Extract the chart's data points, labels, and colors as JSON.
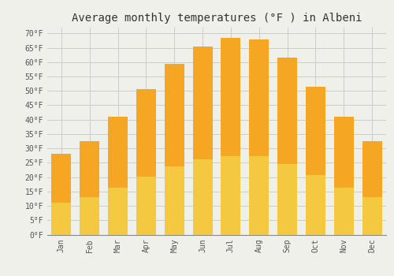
{
  "title": "Average monthly temperatures (°F ) in Albeni",
  "months": [
    "Jan",
    "Feb",
    "Mar",
    "Apr",
    "May",
    "Jun",
    "Jul",
    "Aug",
    "Sep",
    "Oct",
    "Nov",
    "Dec"
  ],
  "values": [
    28,
    32.5,
    41,
    50.5,
    59.5,
    65.5,
    68.5,
    68,
    61.5,
    51.5,
    41,
    32.5
  ],
  "bar_color_top": "#F5A623",
  "bar_color_bottom": "#F5C842",
  "bar_edge_color": "none",
  "background_color": "#F0F0EA",
  "grid_color": "#CCCCCC",
  "ylim": [
    0,
    72
  ],
  "yticks": [
    0,
    5,
    10,
    15,
    20,
    25,
    30,
    35,
    40,
    45,
    50,
    55,
    60,
    65,
    70
  ],
  "title_fontsize": 10,
  "tick_fontsize": 7,
  "font_family": "monospace",
  "bar_width": 0.7
}
